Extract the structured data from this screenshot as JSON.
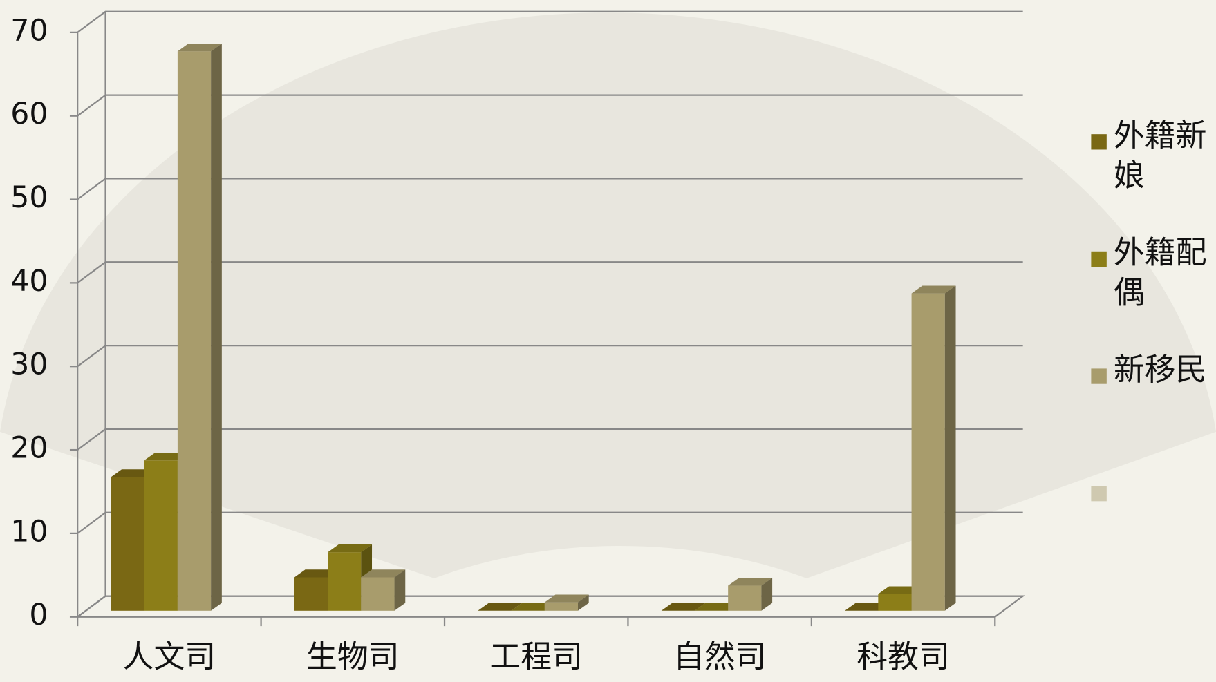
{
  "chart_data": {
    "type": "bar3d",
    "categories": [
      "人文司",
      "生物司",
      "工程司",
      "自然司",
      "科教司"
    ],
    "series": [
      {
        "name": "外籍新娘",
        "color": "#7a6814",
        "values": [
          16,
          4,
          0,
          0,
          0
        ]
      },
      {
        "name": "外籍配偶",
        "color": "#8c7e18",
        "values": [
          18,
          7,
          0,
          0,
          2
        ]
      },
      {
        "name": "新移民",
        "color": "#a89c6c",
        "values": [
          67,
          4,
          1,
          3,
          38
        ]
      },
      {
        "name": null,
        "color": "#cfc9b0",
        "values": [
          null,
          null,
          null,
          null,
          null
        ]
      }
    ],
    "ylim": [
      0,
      70
    ],
    "yticks": [
      0,
      10,
      20,
      30,
      40,
      50,
      60,
      70
    ],
    "grid": true,
    "legend": "right"
  }
}
